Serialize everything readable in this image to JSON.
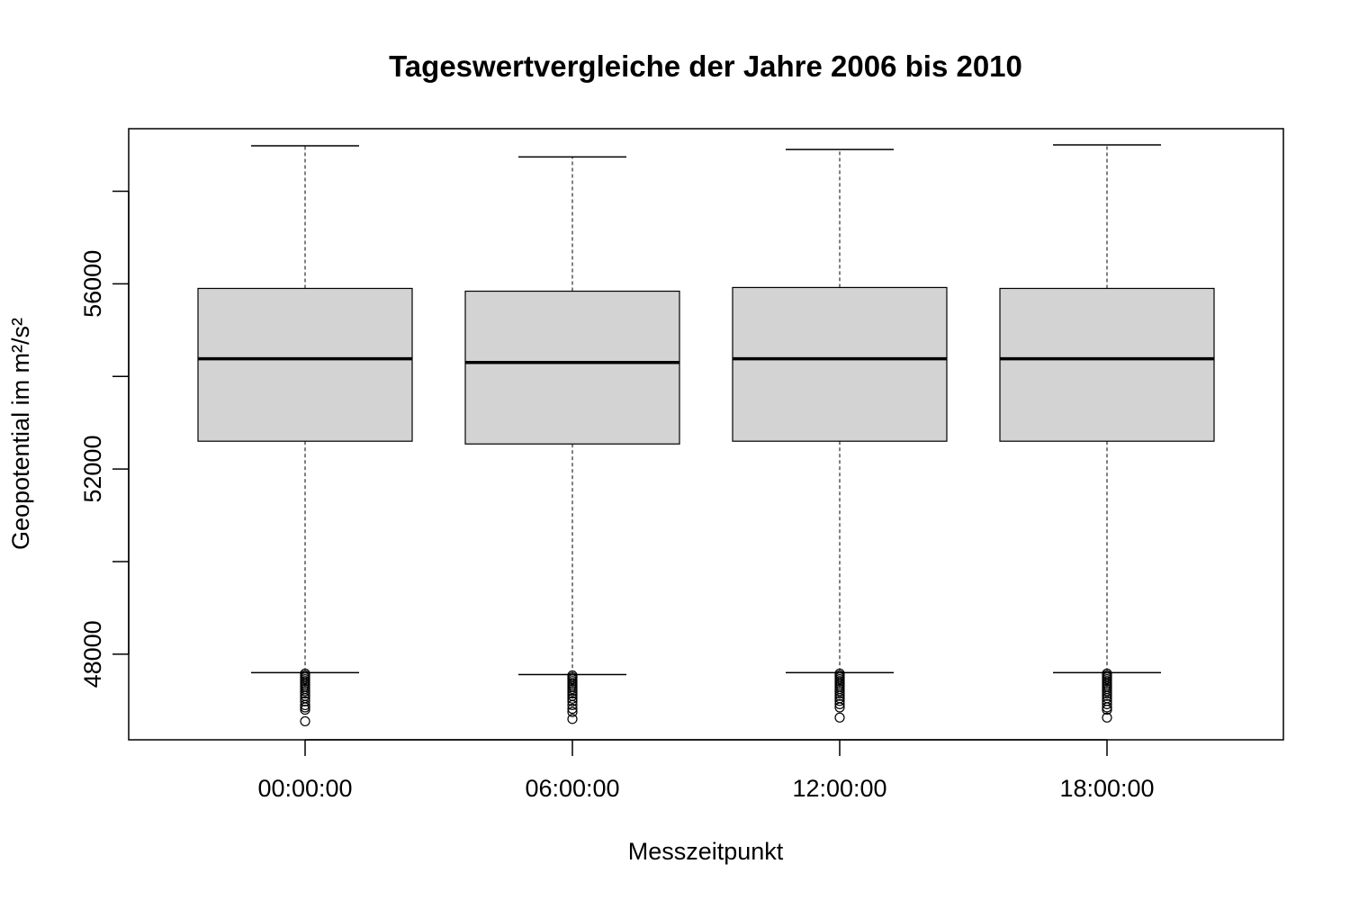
{
  "chart_data": {
    "type": "boxplot",
    "title": "Tageswertvergleiche der Jahre 2006 bis 2010",
    "xlabel": "Messzeitpunkt",
    "ylabel": "Geopotential im m²/s²",
    "ylim": [
      46150,
      59350
    ],
    "yticks": [
      48000,
      50000,
      52000,
      54000,
      56000,
      58000
    ],
    "ytick_labels": [
      "48000",
      "",
      "52000",
      "",
      "56000",
      ""
    ],
    "grid": false,
    "legend": "none",
    "categories": [
      "00:00:00",
      "06:00:00",
      "12:00:00",
      "18:00:00"
    ],
    "box_fill": "#d3d3d3",
    "boxes": [
      {
        "label": "00:00:00",
        "whisker_low": 47600,
        "q1": 52600,
        "median": 54380,
        "q3": 55900,
        "whisker_high": 58980,
        "outliers": [
          47580,
          47540,
          47500,
          47460,
          47420,
          47380,
          47340,
          47300,
          47250,
          47200,
          47150,
          47100,
          47050,
          46980,
          46900,
          46850,
          46800,
          46550
        ]
      },
      {
        "label": "06:00:00",
        "whisker_low": 47560,
        "q1": 52540,
        "median": 54300,
        "q3": 55840,
        "whisker_high": 58740,
        "outliers": [
          47540,
          47500,
          47460,
          47420,
          47380,
          47340,
          47300,
          47250,
          47200,
          47150,
          47100,
          47040,
          46980,
          46900,
          46820,
          46750,
          46600
        ]
      },
      {
        "label": "12:00:00",
        "whisker_low": 47600,
        "q1": 52600,
        "median": 54380,
        "q3": 55920,
        "whisker_high": 58900,
        "outliers": [
          47580,
          47540,
          47500,
          47460,
          47420,
          47380,
          47340,
          47300,
          47250,
          47200,
          47150,
          47100,
          47050,
          46990,
          46920,
          46850,
          46630
        ]
      },
      {
        "label": "18:00:00",
        "whisker_low": 47600,
        "q1": 52600,
        "median": 54380,
        "q3": 55900,
        "whisker_high": 59000,
        "outliers": [
          47580,
          47540,
          47500,
          47460,
          47420,
          47380,
          47340,
          47300,
          47250,
          47200,
          47150,
          47100,
          47050,
          46990,
          46920,
          46850,
          46800,
          46630
        ]
      }
    ]
  }
}
